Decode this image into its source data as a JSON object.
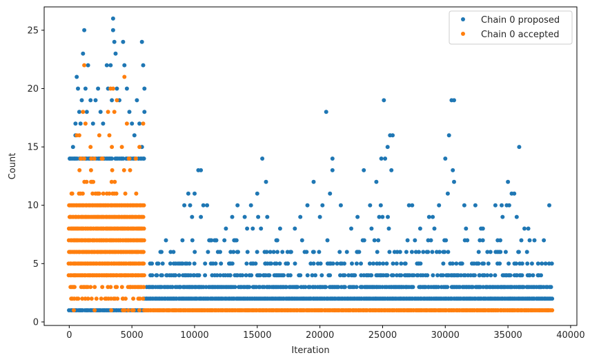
{
  "chart_data": {
    "type": "scatter",
    "xlabel": "Iteration",
    "ylabel": "Count",
    "xlim": [
      -2000,
      40500
    ],
    "ylim": [
      -0.3,
      27.0
    ],
    "xticks": [
      0,
      5000,
      10000,
      15000,
      20000,
      25000,
      30000,
      35000,
      40000
    ],
    "yticks": [
      0,
      5,
      10,
      15,
      20,
      25
    ],
    "legend": {
      "position": "top-right"
    },
    "colors": {
      "proposed": "#1f77b4",
      "accepted": "#ff7f0e"
    },
    "series": [
      {
        "name": "Chain 0 proposed",
        "color": "#1f77b4",
        "bands": [
          {
            "x_range": [
              0,
              6000
            ],
            "y": [
              1,
              14
            ],
            "density": 0.9
          },
          {
            "x_range": [
              6000,
              38500
            ],
            "y": [
              2
            ],
            "density": 1.0
          },
          {
            "x_range": [
              6200,
              38500
            ],
            "y": [
              3
            ],
            "density": 0.75
          },
          {
            "x_range": [
              6500,
              38300
            ],
            "y": [
              4
            ],
            "density": 0.45
          },
          {
            "x_range": [
              6500,
              38300
            ],
            "y": [
              5
            ],
            "density": 0.28
          },
          {
            "x_range": [
              7000,
              38000
            ],
            "y": [
              6
            ],
            "density": 0.18
          },
          {
            "x_range": [
              7000,
              38000
            ],
            "y": [
              7
            ],
            "density": 0.1
          },
          {
            "x_range": [
              8000,
              37000
            ],
            "y": [
              8
            ],
            "density": 0.05
          },
          {
            "x_range": [
              9000,
              36000
            ],
            "y": [
              9,
              10
            ],
            "density": 0.02
          }
        ],
        "points": [
          {
            "x": 300,
            "y": 15
          },
          {
            "x": 500,
            "y": 17
          },
          {
            "x": 500,
            "y": 16
          },
          {
            "x": 600,
            "y": 21
          },
          {
            "x": 700,
            "y": 20
          },
          {
            "x": 800,
            "y": 18
          },
          {
            "x": 900,
            "y": 17
          },
          {
            "x": 1000,
            "y": 19
          },
          {
            "x": 1200,
            "y": 25
          },
          {
            "x": 1100,
            "y": 23
          },
          {
            "x": 1300,
            "y": 20
          },
          {
            "x": 1400,
            "y": 18
          },
          {
            "x": 1500,
            "y": 22
          },
          {
            "x": 1700,
            "y": 19
          },
          {
            "x": 1900,
            "y": 17
          },
          {
            "x": 2100,
            "y": 19
          },
          {
            "x": 2300,
            "y": 20
          },
          {
            "x": 2500,
            "y": 18
          },
          {
            "x": 2700,
            "y": 17
          },
          {
            "x": 3000,
            "y": 22
          },
          {
            "x": 3100,
            "y": 20
          },
          {
            "x": 3300,
            "y": 22
          },
          {
            "x": 3400,
            "y": 19
          },
          {
            "x": 3500,
            "y": 26
          },
          {
            "x": 3500,
            "y": 25
          },
          {
            "x": 3600,
            "y": 24
          },
          {
            "x": 3700,
            "y": 23
          },
          {
            "x": 3800,
            "y": 20
          },
          {
            "x": 4000,
            "y": 19
          },
          {
            "x": 4300,
            "y": 24
          },
          {
            "x": 4400,
            "y": 22
          },
          {
            "x": 4600,
            "y": 20
          },
          {
            "x": 4800,
            "y": 18
          },
          {
            "x": 5000,
            "y": 17
          },
          {
            "x": 5200,
            "y": 16
          },
          {
            "x": 5400,
            "y": 19
          },
          {
            "x": 5600,
            "y": 17
          },
          {
            "x": 5800,
            "y": 24
          },
          {
            "x": 5900,
            "y": 22
          },
          {
            "x": 6000,
            "y": 20
          },
          {
            "x": 6000,
            "y": 18
          },
          {
            "x": 5800,
            "y": 15
          },
          {
            "x": 9500,
            "y": 11
          },
          {
            "x": 9800,
            "y": 9
          },
          {
            "x": 10000,
            "y": 11
          },
          {
            "x": 10300,
            "y": 13
          },
          {
            "x": 10500,
            "y": 13
          },
          {
            "x": 10700,
            "y": 10
          },
          {
            "x": 11000,
            "y": 10
          },
          {
            "x": 10500,
            "y": 9
          },
          {
            "x": 12500,
            "y": 8
          },
          {
            "x": 13000,
            "y": 9
          },
          {
            "x": 14000,
            "y": 9
          },
          {
            "x": 14500,
            "y": 10
          },
          {
            "x": 15000,
            "y": 11
          },
          {
            "x": 15400,
            "y": 14
          },
          {
            "x": 15700,
            "y": 12
          },
          {
            "x": 15300,
            "y": 8
          },
          {
            "x": 15800,
            "y": 9
          },
          {
            "x": 18000,
            "y": 8
          },
          {
            "x": 19000,
            "y": 10
          },
          {
            "x": 19500,
            "y": 12
          },
          {
            "x": 20000,
            "y": 9
          },
          {
            "x": 20500,
            "y": 18
          },
          {
            "x": 20800,
            "y": 11
          },
          {
            "x": 21000,
            "y": 14
          },
          {
            "x": 21000,
            "y": 13
          },
          {
            "x": 20200,
            "y": 10
          },
          {
            "x": 22500,
            "y": 8
          },
          {
            "x": 23000,
            "y": 9
          },
          {
            "x": 23500,
            "y": 13
          },
          {
            "x": 24000,
            "y": 10
          },
          {
            "x": 24500,
            "y": 12
          },
          {
            "x": 24900,
            "y": 14
          },
          {
            "x": 25100,
            "y": 19
          },
          {
            "x": 25200,
            "y": 14
          },
          {
            "x": 25400,
            "y": 15
          },
          {
            "x": 25600,
            "y": 16
          },
          {
            "x": 25800,
            "y": 16
          },
          {
            "x": 25700,
            "y": 13
          },
          {
            "x": 28000,
            "y": 8
          },
          {
            "x": 29000,
            "y": 9
          },
          {
            "x": 29500,
            "y": 10
          },
          {
            "x": 30000,
            "y": 14
          },
          {
            "x": 30300,
            "y": 16
          },
          {
            "x": 30500,
            "y": 19
          },
          {
            "x": 30700,
            "y": 19
          },
          {
            "x": 30600,
            "y": 13
          },
          {
            "x": 30700,
            "y": 12
          },
          {
            "x": 30200,
            "y": 11
          },
          {
            "x": 33000,
            "y": 8
          },
          {
            "x": 34000,
            "y": 10
          },
          {
            "x": 34500,
            "y": 10
          },
          {
            "x": 35000,
            "y": 12
          },
          {
            "x": 35300,
            "y": 11
          },
          {
            "x": 35500,
            "y": 11
          },
          {
            "x": 35900,
            "y": 15
          },
          {
            "x": 35700,
            "y": 9
          },
          {
            "x": 38000,
            "y": 5
          },
          {
            "x": 38300,
            "y": 10
          },
          {
            "x": 38500,
            "y": 5
          },
          {
            "x": 37000,
            "y": 4
          }
        ]
      },
      {
        "name": "Chain 0 accepted",
        "color": "#ff7f0e",
        "bands": [
          {
            "x_range": [
              0,
              6000
            ],
            "y": [
              1
            ],
            "density": 0.12
          },
          {
            "x_range": [
              6000,
              38500
            ],
            "y": [
              1
            ],
            "density": 1.0
          },
          {
            "x_range": [
              0,
              6000
            ],
            "y": [
              2,
              3
            ],
            "density": 0.4
          },
          {
            "x_range": [
              0,
              6000
            ],
            "y": [
              4,
              5,
              6,
              7,
              8,
              9,
              10
            ],
            "density": 1.0
          },
          {
            "x_range": [
              0,
              6000
            ],
            "y": [
              11
            ],
            "density": 0.3
          },
          {
            "x_range": [
              0,
              6000
            ],
            "y": [
              12,
              13,
              14
            ],
            "density": 0.1
          }
        ],
        "points": [
          {
            "x": 1200,
            "y": 22
          },
          {
            "x": 4400,
            "y": 21
          },
          {
            "x": 3300,
            "y": 20
          },
          {
            "x": 3500,
            "y": 20
          },
          {
            "x": 3800,
            "y": 19
          },
          {
            "x": 3600,
            "y": 18
          },
          {
            "x": 1100,
            "y": 18
          },
          {
            "x": 3100,
            "y": 18
          },
          {
            "x": 1300,
            "y": 17
          },
          {
            "x": 4600,
            "y": 17
          },
          {
            "x": 5900,
            "y": 17
          },
          {
            "x": 600,
            "y": 16
          },
          {
            "x": 800,
            "y": 16
          },
          {
            "x": 2400,
            "y": 16
          },
          {
            "x": 3200,
            "y": 16
          },
          {
            "x": 3400,
            "y": 15
          },
          {
            "x": 4200,
            "y": 15
          },
          {
            "x": 5600,
            "y": 15
          },
          {
            "x": 1700,
            "y": 15
          },
          {
            "x": 2000,
            "y": 14
          },
          {
            "x": 4800,
            "y": 14
          },
          {
            "x": 5300,
            "y": 14
          }
        ]
      }
    ]
  }
}
